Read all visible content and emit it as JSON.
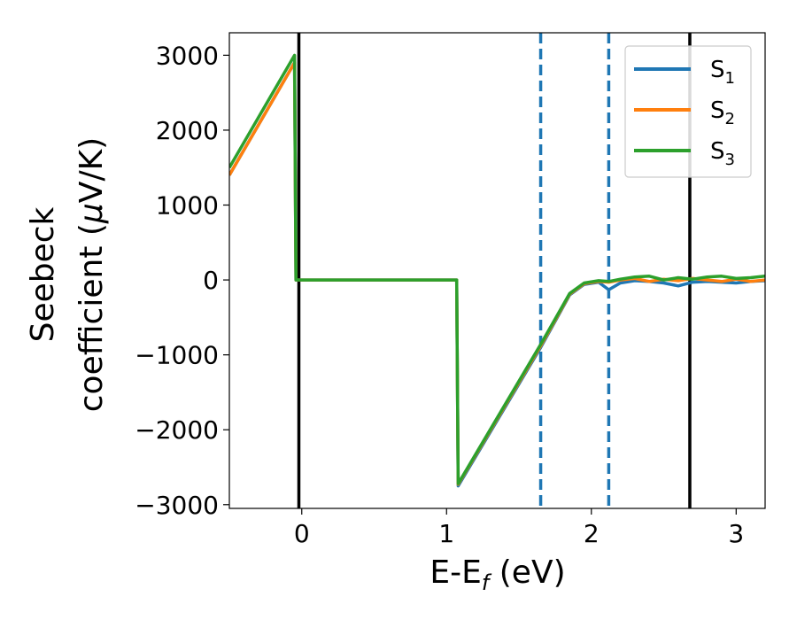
{
  "chart_data": {
    "type": "line",
    "title": "",
    "xlabel": "E-E",
    "xlabel_sub": "f",
    "xlabel_unit": " (eV)",
    "ylabel_line1": "Seebeck",
    "ylabel_line2": "coefficient  (",
    "ylabel_mu": "μ",
    "ylabel_unit": "V/K)",
    "xlim": [
      -0.5,
      3.2
    ],
    "ylim": [
      -3050,
      3300
    ],
    "xticks": [
      0,
      1,
      2,
      3
    ],
    "xtick_labels": [
      "0",
      "1",
      "2",
      "3"
    ],
    "yticks": [
      -3000,
      -2000,
      -1000,
      0,
      1000,
      2000,
      3000
    ],
    "ytick_labels": [
      "−3000",
      "−2000",
      "−1000",
      "0",
      "1000",
      "2000",
      "3000"
    ],
    "grid": false,
    "legend_position": "top-right",
    "vlines_solid": [
      -0.02,
      2.68
    ],
    "vlines_dashed": [
      1.65,
      2.12
    ],
    "colors": {
      "S1": "#1f77b4",
      "S2": "#ff7f0e",
      "S3": "#2ca02c",
      "solid_line": "#000000",
      "dashed_line": "#1f77b4"
    },
    "series": [
      {
        "name": "S",
        "sub": "1",
        "key": "S1",
        "x": [
          -0.5,
          -0.05,
          -0.04,
          1.07,
          1.08,
          1.65,
          1.85,
          1.95,
          2.05,
          2.12,
          2.2,
          2.3,
          2.4,
          2.5,
          2.6,
          2.7,
          2.8,
          2.9,
          3.0,
          3.1,
          3.2
        ],
        "y": [
          1400,
          2900,
          0,
          0,
          -2750,
          -900,
          -200,
          -60,
          -30,
          -130,
          -40,
          -10,
          -20,
          -40,
          -80,
          -30,
          -20,
          -30,
          -40,
          -20,
          -10
        ]
      },
      {
        "name": "S",
        "sub": "2",
        "key": "S2",
        "x": [
          -0.5,
          -0.05,
          -0.04,
          1.07,
          1.08,
          1.65,
          1.85,
          1.95,
          2.05,
          2.12,
          2.2,
          2.3,
          2.4,
          2.5,
          2.6,
          2.7,
          2.8,
          2.9,
          3.0,
          3.1,
          3.2
        ],
        "y": [
          1400,
          2900,
          0,
          0,
          -2730,
          -880,
          -190,
          -50,
          -20,
          -30,
          0,
          20,
          -20,
          10,
          -10,
          20,
          0,
          -20,
          10,
          -20,
          0
        ]
      },
      {
        "name": "S",
        "sub": "3",
        "key": "S3",
        "x": [
          -0.5,
          -0.05,
          -0.04,
          1.07,
          1.08,
          1.65,
          1.85,
          1.95,
          2.05,
          2.12,
          2.2,
          2.3,
          2.4,
          2.5,
          2.6,
          2.7,
          2.8,
          2.9,
          3.0,
          3.1,
          3.2
        ],
        "y": [
          1500,
          3000,
          0,
          0,
          -2720,
          -860,
          -180,
          -40,
          -10,
          -20,
          10,
          40,
          50,
          0,
          30,
          10,
          40,
          50,
          20,
          30,
          50
        ]
      }
    ]
  }
}
